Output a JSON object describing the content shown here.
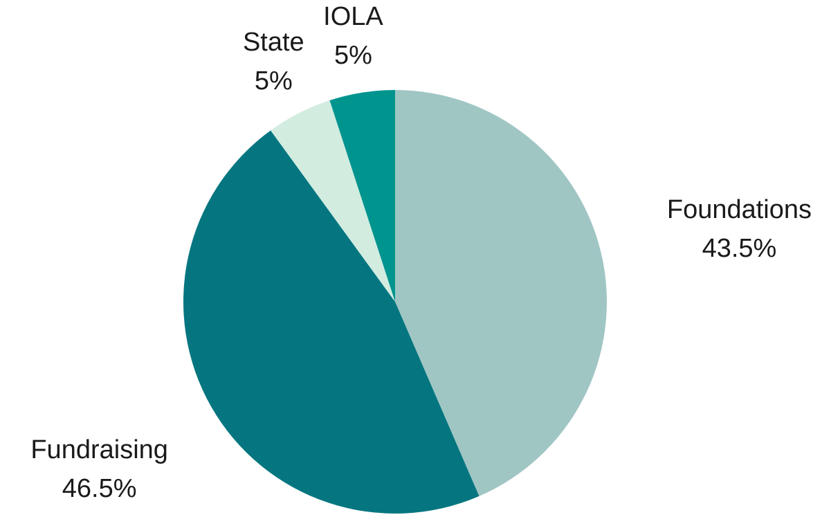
{
  "chart_data": {
    "type": "pie",
    "categories": [
      "Foundations",
      "Fundraising",
      "State",
      "IOLA"
    ],
    "values": [
      43.5,
      46.5,
      5,
      5
    ],
    "value_labels": [
      "43.5%",
      "46.5%",
      "5%",
      "5%"
    ],
    "colors": [
      "#a0c6c4",
      "#057680",
      "#d2ece0",
      "#00948f"
    ]
  }
}
